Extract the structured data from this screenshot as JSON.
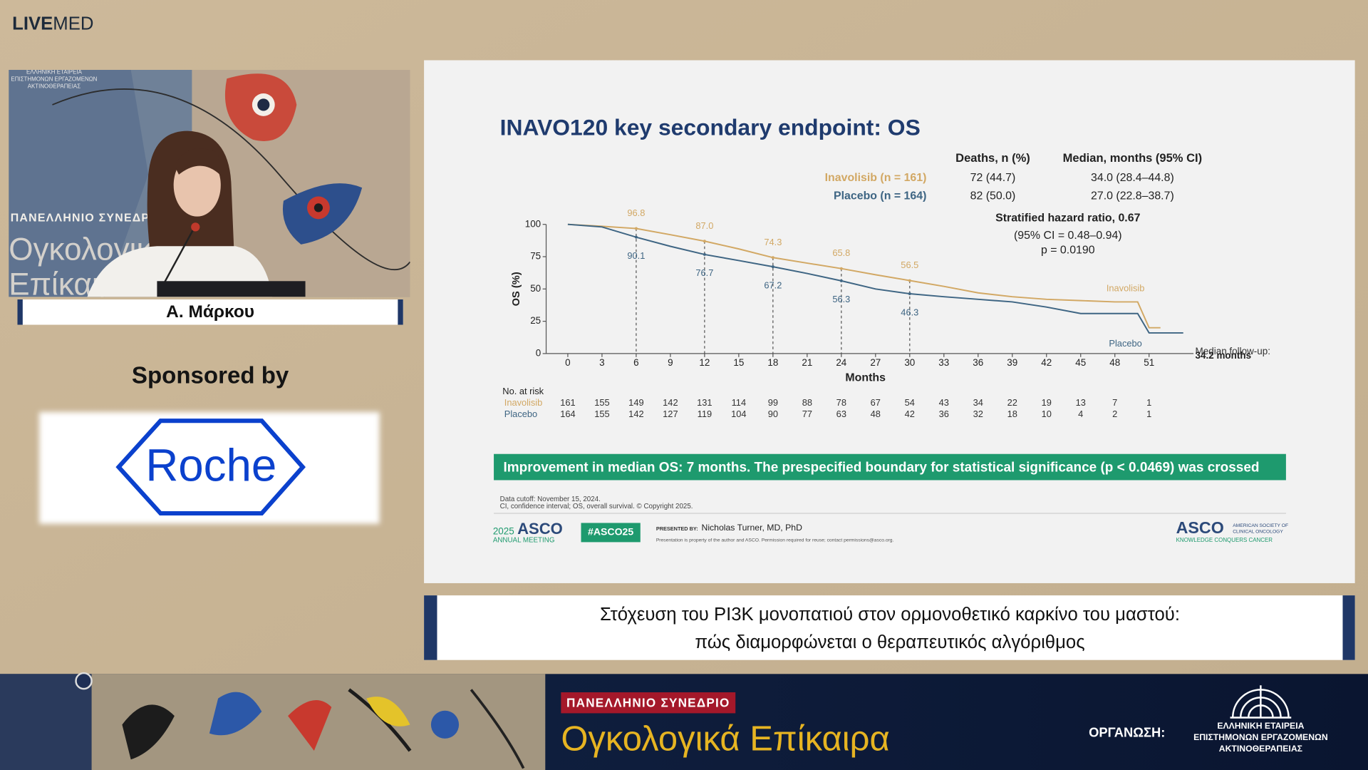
{
  "header": {
    "brand_bold": "LIVE",
    "brand_light": "MED"
  },
  "video": {
    "backdrop_org": [
      "ΕΛΛΗΝΙΚΗ ΕΤΑΙΡΕΙΑ",
      "ΕΠΙΣΤΗΜΟΝΩΝ ΕΡΓΑΖΟΜΕΝΩΝ",
      "ΑΚΤΙΝΟΘΕΡΑΠΕΙΑΣ"
    ],
    "backdrop_congress": "ΠΑΝΕΛΛΗΝΙΟ ΣΥΝΕΔΡΙΟ",
    "backdrop_title": [
      "Ογκολογικά",
      "Επίκαιρα"
    ],
    "speaker": "Α. Μάρκου"
  },
  "sponsor": {
    "label": "Sponsored by",
    "logo": "Roche"
  },
  "slide": {
    "title": "INAVO120 key secondary endpoint: OS",
    "table": {
      "headers": [
        "Deaths, n (%)",
        "Median, months (95% CI)"
      ],
      "rows": [
        [
          "Inavolisib (n = 161)",
          "72 (44.7)",
          "34.0 (28.4–44.8)"
        ],
        [
          "Placebo (n = 164)",
          "82 (50.0)",
          "27.0 (22.8–38.7)"
        ]
      ]
    },
    "hazard": [
      "Stratified hazard ratio, 0.67",
      "(95% CI = 0.48–0.94)",
      "p = 0.0190"
    ],
    "risk_table": {
      "label": "No. at risk",
      "rows": [
        [
          161,
          155,
          149,
          142,
          131,
          114,
          99,
          88,
          78,
          67,
          54,
          43,
          34,
          22,
          19,
          13,
          7,
          1
        ],
        [
          164,
          155,
          142,
          127,
          119,
          104,
          90,
          77,
          63,
          48,
          42,
          36,
          32,
          18,
          10,
          4,
          2,
          1
        ]
      ]
    },
    "banner": "Improvement in median OS: 7 months. The prespecified boundary for statistical significance (p < 0.0469) was crossed",
    "footnotes": [
      "Data cutoff: November 15, 2024.",
      "CI, confidence interval; OS, overall survival. © Copyright 2025."
    ],
    "footer": {
      "year": "2025",
      "asco": "ASCO",
      "meeting": "ANNUAL MEETING",
      "hashtag": "#ASCO25",
      "presented_label": "PRESENTED BY:",
      "presenter": "Nicholas Turner, MD, PhD",
      "permission": "Presentation is property of the author and ASCO. Permission required for reuse; contact permissions@asco.org.",
      "asco_logo": "ASCO",
      "asco_society": [
        "AMERICAN SOCIETY OF",
        "CLINICAL ONCOLOGY"
      ],
      "asco_tagline": "KNOWLEDGE CONQUERS CANCER"
    }
  },
  "chart_data": {
    "type": "line",
    "x_label": "Months",
    "y_label": "OS (%)",
    "x": [
      0,
      3,
      6,
      9,
      12,
      15,
      18,
      21,
      24,
      27,
      30,
      33,
      36,
      39,
      42,
      45,
      48,
      50,
      51,
      52,
      53,
      54
    ],
    "series": [
      {
        "name": "Inavolisib",
        "color": "#d2a864",
        "values": [
          100,
          98.5,
          96.8,
          92,
          87.0,
          81,
          74.3,
          70,
          65.8,
          61,
          56.5,
          52,
          47,
          44,
          42,
          41,
          40,
          40,
          20,
          20,
          null,
          null
        ],
        "landmark_values": [
          96.8,
          87.0,
          74.3,
          65.8,
          56.5
        ],
        "landmark_labels": [
          "96.8",
          "87.0",
          "74.3",
          "65.8",
          "56.5"
        ]
      },
      {
        "name": "Placebo",
        "color": "#3e6583",
        "values": [
          100,
          98,
          90.1,
          83,
          76.7,
          72,
          67.2,
          62,
          56.3,
          50,
          46.3,
          44,
          42,
          40,
          36,
          31,
          31,
          31,
          16,
          16,
          16,
          16
        ],
        "landmark_values": [
          90.1,
          76.7,
          67.2,
          56.3,
          46.3
        ],
        "landmark_labels": [
          "90.1",
          "76.7",
          "67.2",
          "56.3",
          "46.3"
        ]
      }
    ],
    "landmark_x": [
      6,
      12,
      18,
      24,
      30
    ],
    "annotations": [
      "Median follow-up:",
      "34.2 months"
    ],
    "xlim": [
      -1.9,
      54.9
    ],
    "ylim": [
      0,
      100
    ],
    "xticks": [
      0,
      3,
      6,
      9,
      12,
      15,
      18,
      21,
      24,
      27,
      30,
      33,
      36,
      39,
      42,
      45,
      48,
      51
    ],
    "yticks": [
      0,
      25,
      50,
      75,
      100
    ]
  },
  "caption": [
    "Στόχευση του PI3K μονοπατιού στον ορμονοθετικό καρκίνο του μαστού:",
    "πώς διαμορφώνεται ο θεραπευτικός αλγόριθμος"
  ],
  "banner": {
    "tag": "ΠΑΝΕΛΛΗΝΙΟ ΣΥΝΕΔΡΙΟ",
    "title": "Ογκολογικά Επίκαιρα",
    "organizer_label": "ΟΡΓΑΝΩΣΗ:",
    "organizer": [
      "ΕΛΛΗΝΙΚΗ ΕΤΑΙΡΕΙΑ",
      "ΕΠΙΣΤΗΜΟΝΩΝ ΕΡΓΑΖΟΜΕΝΩΝ",
      "ΑΚΤΙΝΟΘΕΡΑΠΕΙΑΣ"
    ]
  }
}
